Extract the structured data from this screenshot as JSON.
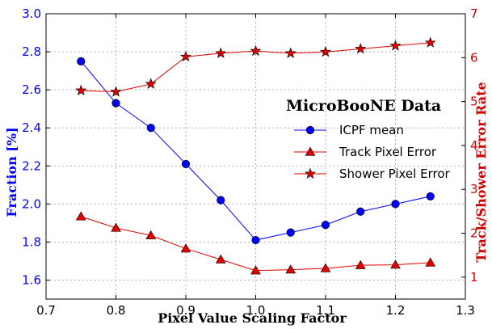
{
  "chart_data": {
    "type": "line",
    "legend_title": "MicroBooNE Data",
    "legend_position": "right",
    "grid": true,
    "xlabel": "Pixel Value Scaling Factor",
    "ylabel_left": "Fraction [%]",
    "ylabel_right": "Track/Shower Error Rate",
    "xlim": [
      0.7,
      1.3
    ],
    "ylim_left": [
      1.5,
      3.0
    ],
    "ylim_right": [
      0.5,
      7.0
    ],
    "x_ticks": [
      "0.7",
      "0.8",
      "0.9",
      "1.0",
      "1.1",
      "1.2",
      "1.3"
    ],
    "y_left_ticks": [
      "1.6",
      "1.8",
      "2.0",
      "2.2",
      "2.4",
      "2.6",
      "2.8",
      "3.0"
    ],
    "y_right_ticks": [
      "1",
      "2",
      "3",
      "4",
      "5",
      "6",
      "7"
    ],
    "colors": {
      "left_axis": "#0000ff",
      "right_axis": "#d00000",
      "grid": "#b0b0b0"
    },
    "x": [
      0.75,
      0.8,
      0.85,
      0.9,
      0.95,
      1.0,
      1.05,
      1.1,
      1.15,
      1.2,
      1.25
    ],
    "series": [
      {
        "name": "ICPF mean",
        "axis": "left",
        "marker": "circle",
        "color": "#0000ff",
        "values": [
          2.75,
          2.53,
          2.4,
          2.21,
          2.02,
          1.81,
          1.85,
          1.89,
          1.96,
          2.0,
          2.04
        ]
      },
      {
        "name": "Track Pixel Error",
        "axis": "right",
        "marker": "triangle",
        "color": "#e00000",
        "values": [
          2.38,
          2.12,
          1.95,
          1.65,
          1.4,
          1.15,
          1.17,
          1.2,
          1.27,
          1.28,
          1.33
        ]
      },
      {
        "name": "Shower Pixel Error",
        "axis": "right",
        "marker": "star",
        "color": "#e00000",
        "values": [
          5.25,
          5.22,
          5.4,
          6.02,
          6.1,
          6.15,
          6.1,
          6.13,
          6.2,
          6.27,
          6.34
        ]
      }
    ]
  }
}
